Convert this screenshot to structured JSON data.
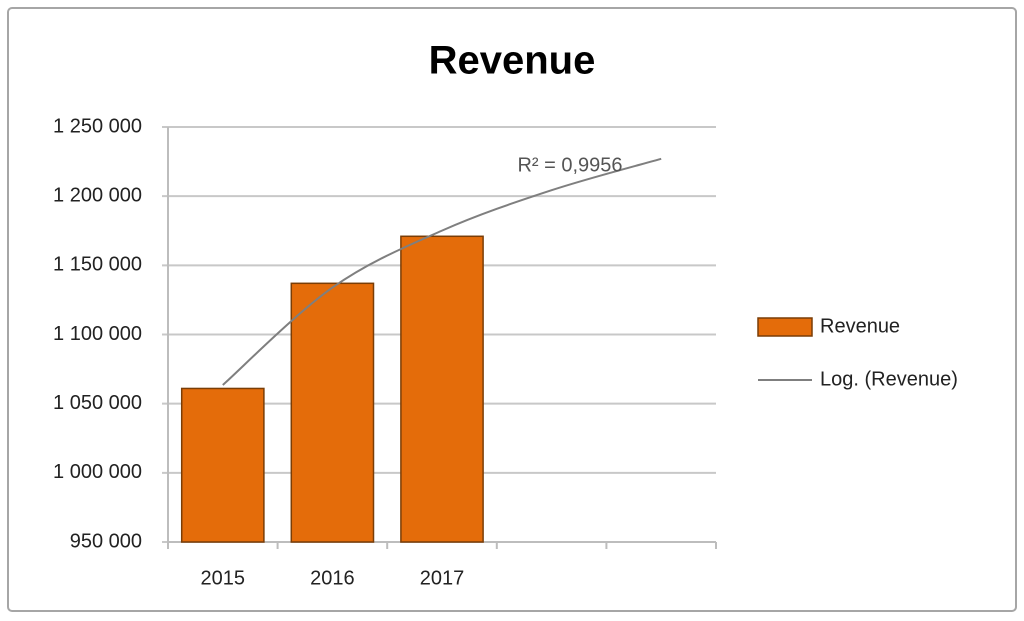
{
  "chart_data": {
    "type": "bar",
    "title": "Revenue",
    "categories": [
      "2015",
      "2016",
      "2017",
      null,
      null
    ],
    "series": [
      {
        "name": "Revenue",
        "color": "#e46c0a",
        "values": [
          1061000,
          1137000,
          1171000,
          null,
          null
        ]
      },
      {
        "name": "Log. (Revenue)",
        "color": "#7f7f7f",
        "type": "line",
        "values": [
          1063500,
          1133900,
          1175100,
          1204300,
          1227000
        ]
      }
    ],
    "annotation": "R² = 0,9956",
    "ylim": [
      950000,
      1250000
    ],
    "yticks": [
      {
        "value": 950000,
        "label": "950 000"
      },
      {
        "value": 1000000,
        "label": "1 000 000"
      },
      {
        "value": 1050000,
        "label": "1 050 000"
      },
      {
        "value": 1100000,
        "label": "1 100 000"
      },
      {
        "value": 1150000,
        "label": "1 150 000"
      },
      {
        "value": 1200000,
        "label": "1 200 000"
      },
      {
        "value": 1250000,
        "label": "1 250 000"
      }
    ],
    "grid": true,
    "legend": "right"
  }
}
